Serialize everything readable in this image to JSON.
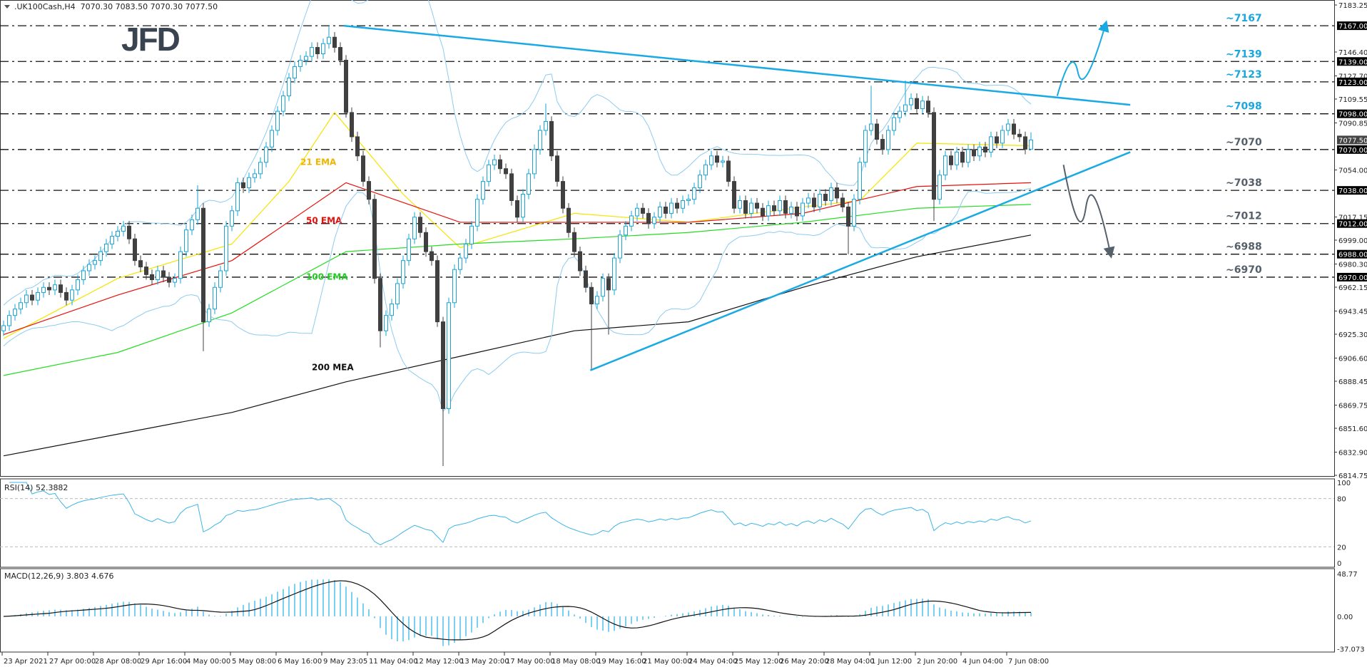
{
  "header": {
    "symbol_info": ".UK100Cash,H4  7070.30 7083.50 7070.30 7077.50"
  },
  "logo": "JFD",
  "chart_data": {
    "type": "candlestick",
    "symbol": ".UK100Cash",
    "timeframe": "H4",
    "ylim": [
      6814.75,
      7183.25
    ],
    "grid": false,
    "colors": {
      "bull": "#1aa3d4",
      "bear": "#404040",
      "trend": "#19aae3",
      "up_level": "#1aa7dd",
      "down_level": "#55606b"
    },
    "last_ohlc": {
      "open": 7070.3,
      "high": 7083.5,
      "low": 7070.3,
      "close": 7077.5
    },
    "closes": [
      6932,
      6940,
      6945,
      6950,
      6956,
      6952,
      6958,
      6962,
      6960,
      6964,
      6958,
      6952,
      6960,
      6968,
      6975,
      6980,
      6983,
      6990,
      6996,
      7002,
      7006,
      7010,
      7000,
      6983,
      6978,
      6972,
      6968,
      6975,
      6970,
      6966,
      6969,
      6990,
      7007,
      7015,
      7024,
      6935,
      6945,
      6962,
      6975,
      7010,
      7022,
      7044,
      7040,
      7048,
      7051,
      7060,
      7072,
      7085,
      7100,
      7112,
      7126,
      7135,
      7140,
      7143,
      7150,
      7145,
      7153,
      7158,
      7150,
      7140,
      7099,
      7080,
      7065,
      7045,
      7031,
      6969,
      6928,
      6940,
      6949,
      6965,
      6983,
      7000,
      7017,
      7005,
      6990,
      6983,
      6935,
      6867,
      6950,
      6976,
      6985,
      6996,
      7010,
      7031,
      7045,
      7058,
      7062,
      7055,
      7051,
      7030,
      7017,
      7035,
      7051,
      7070,
      7085,
      7092,
      7065,
      7045,
      7024,
      7005,
      6990,
      6975,
      6962,
      6949,
      6955,
      6969,
      6960,
      6985,
      7003,
      7010,
      7018,
      7024,
      7020,
      7012,
      7017,
      7025,
      7020,
      7028,
      7024,
      7030,
      7031,
      7040,
      7050,
      7058,
      7065,
      7060,
      7061,
      7045,
      7024,
      7030,
      7020,
      7028,
      7024,
      7018,
      7026,
      7022,
      7030,
      7020,
      7025,
      7018,
      7028,
      7032,
      7025,
      7035,
      7030,
      7040,
      7032,
      7025,
      7010,
      7031,
      7060,
      7085,
      7090,
      7078,
      7070,
      7085,
      7095,
      7100,
      7105,
      7110,
      7102,
      7108,
      7099,
      7031,
      7050,
      7065,
      7058,
      7068,
      7060,
      7070,
      7065,
      7072,
      7068,
      7080,
      7075,
      7085,
      7090,
      7082,
      7080,
      7070.3,
      7077.5
    ],
    "wick_extremes": [
      {
        "i": 34,
        "high": 7042
      },
      {
        "i": 35,
        "low": 6912
      },
      {
        "i": 57,
        "high": 7167
      },
      {
        "i": 66,
        "low": 6915
      },
      {
        "i": 77,
        "low": 6822
      },
      {
        "i": 95,
        "high": 7106
      },
      {
        "i": 103,
        "low": 6897
      },
      {
        "i": 106,
        "low": 6925
      },
      {
        "i": 148,
        "low": 6988
      },
      {
        "i": 152,
        "high": 7120
      },
      {
        "i": 158,
        "high": 7124
      },
      {
        "i": 163,
        "low": 7014
      },
      {
        "i": 180,
        "high": 7083.5,
        "low": 7070.3
      }
    ],
    "price_ticks": [
      "7183.25",
      "7146.40",
      "7127.70",
      "7109.55",
      "7090.85",
      "7054.00",
      "7017.15",
      "6999.00",
      "6980.30",
      "6962.15",
      "6943.45",
      "6925.30",
      "6906.60",
      "6888.45",
      "6869.75",
      "6851.60",
      "6832.90",
      "6814.75"
    ],
    "time_labels": [
      {
        "i": 0,
        "label": "23 Apr 2021"
      },
      {
        "i": 8,
        "label": "27 Apr 00:00"
      },
      {
        "i": 16,
        "label": "28 Apr 08:00"
      },
      {
        "i": 24,
        "label": "29 Apr 16:00"
      },
      {
        "i": 32,
        "label": "4 May 00:00"
      },
      {
        "i": 40,
        "label": "5 May 08:00"
      },
      {
        "i": 48,
        "label": "6 May 16:00"
      },
      {
        "i": 56,
        "label": "9 May 23:05"
      },
      {
        "i": 64,
        "label": "11 May 04:00"
      },
      {
        "i": 72,
        "label": "12 May 12:00"
      },
      {
        "i": 80,
        "label": "13 May 20:00"
      },
      {
        "i": 88,
        "label": "17 May 00:00"
      },
      {
        "i": 96,
        "label": "18 May 08:00"
      },
      {
        "i": 104,
        "label": "19 May 16:00"
      },
      {
        "i": 112,
        "label": "21 May 00:00"
      },
      {
        "i": 120,
        "label": "24 May 04:00"
      },
      {
        "i": 128,
        "label": "25 May 12:00"
      },
      {
        "i": 136,
        "label": "26 May 20:00"
      },
      {
        "i": 144,
        "label": "28 May 04:00"
      },
      {
        "i": 152,
        "label": "1 Jun 12:00"
      },
      {
        "i": 160,
        "label": "2 Jun 20:00"
      },
      {
        "i": 168,
        "label": "4 Jun 04:00"
      },
      {
        "i": 176,
        "label": "7 Jun 08:00"
      }
    ],
    "levels": [
      {
        "price": 7167,
        "label": "~7167",
        "box": "7167.00",
        "side": "up"
      },
      {
        "price": 7139,
        "label": "~7139",
        "box": "7139.00",
        "side": "up"
      },
      {
        "price": 7123,
        "label": "~7123",
        "box": "7123.00",
        "side": "up"
      },
      {
        "price": 7098,
        "label": "~7098",
        "box": "7098.00",
        "side": "up"
      },
      {
        "price": 7070,
        "label": "~7070",
        "box": "7070.00",
        "side": "down"
      },
      {
        "price": 7038,
        "label": "~7038",
        "box": "7038.00",
        "side": "down"
      },
      {
        "price": 7012,
        "label": "~7012",
        "box": "7012.00",
        "side": "down"
      },
      {
        "price": 6988,
        "label": "~6988",
        "box": "6988.00",
        "side": "down"
      },
      {
        "price": 6970,
        "label": "~6970",
        "box": "6970.00",
        "side": "down"
      }
    ],
    "current_price_box": "7077.50",
    "indicators": [
      {
        "key": "ema21",
        "label": "21 EMA",
        "color": "#f5e400",
        "label_color": "#f0b400",
        "label_at": [
          52,
          7058
        ],
        "points": [
          [
            0,
            6922
          ],
          [
            20,
            6969
          ],
          [
            40,
            6996
          ],
          [
            50,
            7045
          ],
          [
            58,
            7099
          ],
          [
            70,
            7035
          ],
          [
            80,
            6993
          ],
          [
            100,
            7020
          ],
          [
            120,
            7013
          ],
          [
            140,
            7025
          ],
          [
            150,
            7030
          ],
          [
            160,
            7075
          ],
          [
            180,
            7073
          ]
        ]
      },
      {
        "key": "ema50",
        "label": "50 EMA",
        "color": "#e8100a",
        "label_color": "#e8100a",
        "label_at": [
          53,
          7012
        ],
        "points": [
          [
            0,
            6925
          ],
          [
            20,
            6956
          ],
          [
            40,
            6983
          ],
          [
            60,
            7044
          ],
          [
            80,
            7013
          ],
          [
            100,
            7013
          ],
          [
            120,
            7013
          ],
          [
            140,
            7020
          ],
          [
            160,
            7041
          ],
          [
            180,
            7044
          ]
        ]
      },
      {
        "key": "ema100",
        "label": "100 EMA",
        "color": "#22dd22",
        "label_color": "#22cc22",
        "label_at": [
          53,
          6968
        ],
        "points": [
          [
            0,
            6893
          ],
          [
            20,
            6911
          ],
          [
            40,
            6942
          ],
          [
            60,
            6990
          ],
          [
            80,
            6996
          ],
          [
            100,
            7000
          ],
          [
            120,
            7005
          ],
          [
            140,
            7013
          ],
          [
            160,
            7024
          ],
          [
            180,
            7027
          ]
        ]
      },
      {
        "key": "ma200",
        "label": "200 MEA",
        "color": "#111111",
        "label_color": "#111111",
        "label_at": [
          54,
          6897
        ],
        "points": [
          [
            0,
            6830
          ],
          [
            20,
            6847
          ],
          [
            40,
            6864
          ],
          [
            60,
            6888
          ],
          [
            80,
            6908
          ],
          [
            100,
            6928
          ],
          [
            120,
            6935
          ],
          [
            140,
            6962
          ],
          [
            160,
            6986
          ],
          [
            180,
            7003
          ]
        ]
      }
    ],
    "trendlines": [
      {
        "from": [
          59.6,
          7167
        ],
        "to": [
          197.4,
          7105
        ]
      },
      {
        "from": [
          102.8,
          6897
        ],
        "to": [
          197.4,
          7068
        ]
      }
    ],
    "scenarios": [
      {
        "side": "up",
        "path": [
          [
            184.6,
            7112
          ],
          [
            187.2,
            7136
          ],
          [
            189.2,
            7126
          ],
          [
            193,
            7167
          ]
        ]
      },
      {
        "side": "down",
        "path": [
          [
            185.7,
            7058
          ],
          [
            188.5,
            7014
          ],
          [
            190.7,
            7034
          ],
          [
            193.9,
            6989
          ]
        ]
      }
    ],
    "rsi": {
      "label": "RSI(14) 52.3882",
      "ticks": [
        "100",
        "80",
        "20",
        "0"
      ],
      "levels": [
        80,
        20
      ],
      "color": "#3cb4e6"
    },
    "macd": {
      "label": "MACD(12,26,9) 3.803 4.676",
      "ticks": [
        "48.77",
        "0.00",
        "-37.073"
      ],
      "hist_color": "#4cc0ea",
      "signal_color": "#111111"
    }
  }
}
